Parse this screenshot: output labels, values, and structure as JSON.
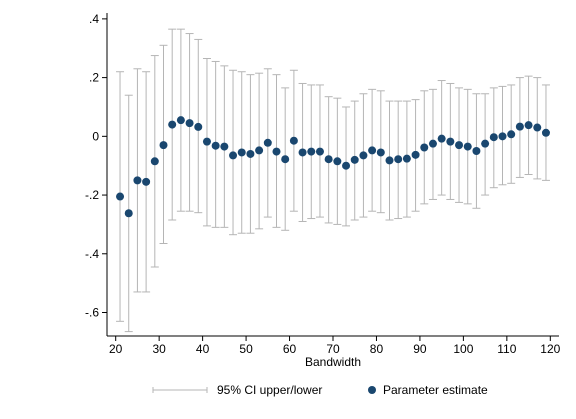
{
  "chart_data": {
    "type": "scatter",
    "title": "",
    "xlabel": "Bandwidth",
    "ylabel": "",
    "xlim": [
      18,
      122
    ],
    "ylim": [
      -0.68,
      0.42
    ],
    "x_ticks": [
      20,
      30,
      40,
      50,
      60,
      70,
      80,
      90,
      100,
      110,
      120
    ],
    "x_tick_labels": [
      "20",
      "30",
      "40",
      "50",
      "60",
      "70",
      "80",
      "90",
      "100",
      "110",
      "120"
    ],
    "y_ticks": [
      -0.6,
      -0.4,
      -0.2,
      0,
      0.2,
      0.4
    ],
    "y_tick_labels": [
      "-.6",
      "-.4",
      "-.2",
      "0",
      ".2",
      ".4"
    ],
    "grid": false,
    "legend_position": "bottom",
    "colors": {
      "estimate": "#1a476f",
      "ci": "#b5b5b5"
    },
    "series": [
      {
        "name": "Parameter estimate",
        "x": [
          21,
          23,
          25,
          27,
          29,
          31,
          33,
          35,
          37,
          39,
          41,
          43,
          45,
          47,
          49,
          51,
          53,
          55,
          57,
          59,
          61,
          63,
          65,
          67,
          69,
          71,
          73,
          75,
          77,
          79,
          81,
          83,
          85,
          87,
          89,
          91,
          93,
          95,
          97,
          99,
          101,
          103,
          105,
          107,
          109,
          111,
          113,
          115,
          117,
          119
        ],
        "y": [
          -0.205,
          -0.262,
          -0.15,
          -0.155,
          -0.085,
          -0.03,
          0.04,
          0.055,
          0.045,
          0.032,
          -0.018,
          -0.032,
          -0.035,
          -0.065,
          -0.055,
          -0.06,
          -0.048,
          -0.022,
          -0.052,
          -0.078,
          -0.015,
          -0.055,
          -0.052,
          -0.052,
          -0.078,
          -0.085,
          -0.1,
          -0.08,
          -0.065,
          -0.048,
          -0.055,
          -0.082,
          -0.078,
          -0.076,
          -0.063,
          -0.038,
          -0.025,
          -0.008,
          -0.018,
          -0.03,
          -0.035,
          -0.05,
          -0.025,
          -0.003,
          0.0,
          0.007,
          0.033,
          0.038,
          0.03,
          0.012
        ]
      },
      {
        "name": "95% CI upper/lower",
        "x": [
          21,
          23,
          25,
          27,
          29,
          31,
          33,
          35,
          37,
          39,
          41,
          43,
          45,
          47,
          49,
          51,
          53,
          55,
          57,
          59,
          61,
          63,
          65,
          67,
          69,
          71,
          73,
          75,
          77,
          79,
          81,
          83,
          85,
          87,
          89,
          91,
          93,
          95,
          97,
          99,
          101,
          103,
          105,
          107,
          109,
          111,
          113,
          115,
          117,
          119
        ],
        "upper": [
          0.22,
          0.14,
          0.23,
          0.22,
          0.275,
          0.31,
          0.365,
          0.365,
          0.35,
          0.33,
          0.265,
          0.255,
          0.24,
          0.225,
          0.22,
          0.21,
          0.215,
          0.23,
          0.21,
          0.165,
          0.225,
          0.18,
          0.175,
          0.175,
          0.135,
          0.13,
          0.1,
          0.12,
          0.145,
          0.16,
          0.155,
          0.12,
          0.12,
          0.12,
          0.125,
          0.155,
          0.16,
          0.19,
          0.18,
          0.165,
          0.16,
          0.145,
          0.145,
          0.165,
          0.17,
          0.175,
          0.2,
          0.205,
          0.2,
          0.175
        ],
        "lower": [
          -0.63,
          -0.665,
          -0.53,
          -0.53,
          -0.445,
          -0.365,
          -0.285,
          -0.255,
          -0.255,
          -0.26,
          -0.305,
          -0.31,
          -0.31,
          -0.335,
          -0.33,
          -0.33,
          -0.315,
          -0.275,
          -0.31,
          -0.32,
          -0.255,
          -0.29,
          -0.28,
          -0.275,
          -0.295,
          -0.3,
          -0.305,
          -0.285,
          -0.275,
          -0.255,
          -0.26,
          -0.285,
          -0.28,
          -0.275,
          -0.255,
          -0.23,
          -0.215,
          -0.2,
          -0.215,
          -0.225,
          -0.23,
          -0.245,
          -0.2,
          -0.175,
          -0.165,
          -0.16,
          -0.14,
          -0.13,
          -0.145,
          -0.15
        ]
      }
    ],
    "legend": [
      {
        "label": "95% CI upper/lower",
        "marker": "line"
      },
      {
        "label": "Parameter estimate",
        "marker": "dot"
      }
    ]
  }
}
